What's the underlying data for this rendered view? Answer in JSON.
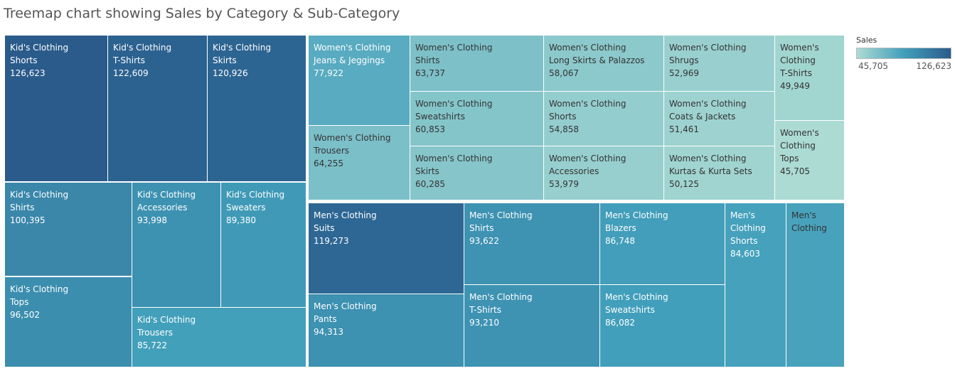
{
  "chart_data": {
    "type": "treemap",
    "title": "Treemap chart showing Sales by Category & Sub-Category",
    "color_legend": {
      "title": "Sales",
      "min": 45705,
      "max": 126623,
      "min_label": "45,705",
      "max_label": "126,623",
      "color_low": "#acdbd3",
      "color_high": "#2a5b8b"
    },
    "groups": [
      {
        "category": "Kid's Clothing",
        "items": [
          {
            "sub_category": "Shorts",
            "value": 126623,
            "value_label": "126,623"
          },
          {
            "sub_category": "T-Shirts",
            "value": 122609,
            "value_label": "122,609"
          },
          {
            "sub_category": "Skirts",
            "value": 120926,
            "value_label": "120,926"
          },
          {
            "sub_category": "Shirts",
            "value": 100395,
            "value_label": "100,395"
          },
          {
            "sub_category": "Accessories",
            "value": 93998,
            "value_label": "93,998"
          },
          {
            "sub_category": "Sweaters",
            "value": 89380,
            "value_label": "89,380"
          },
          {
            "sub_category": "Tops",
            "value": 96502,
            "value_label": "96,502"
          },
          {
            "sub_category": "Trousers",
            "value": 85722,
            "value_label": "85,722"
          }
        ]
      },
      {
        "category": "Women's Clothing",
        "items": [
          {
            "sub_category": "Jeans & Jeggings",
            "value": 77922,
            "value_label": "77,922"
          },
          {
            "sub_category": "Trousers",
            "value": 64255,
            "value_label": "64,255"
          },
          {
            "sub_category": "Shirts",
            "value": 63737,
            "value_label": "63,737"
          },
          {
            "sub_category": "Sweatshirts",
            "value": 60853,
            "value_label": "60,853"
          },
          {
            "sub_category": "Skirts",
            "value": 60285,
            "value_label": "60,285"
          },
          {
            "sub_category": "Long Skirts & Palazzos",
            "value": 58067,
            "value_label": "58,067"
          },
          {
            "sub_category": "Shorts",
            "value": 54858,
            "value_label": "54,858"
          },
          {
            "sub_category": "Accessories",
            "value": 53979,
            "value_label": "53,979"
          },
          {
            "sub_category": "Shrugs",
            "value": 52969,
            "value_label": "52,969"
          },
          {
            "sub_category": "Coats & Jackets",
            "value": 51461,
            "value_label": "51,461"
          },
          {
            "sub_category": "Kurtas & Kurta Sets",
            "value": 50125,
            "value_label": "50,125"
          },
          {
            "sub_category": "T-Shirts",
            "value": 49949,
            "value_label": "49,949"
          },
          {
            "sub_category": "Tops",
            "value": 45705,
            "value_label": "45,705"
          }
        ]
      },
      {
        "category": "Men's Clothing",
        "items": [
          {
            "sub_category": "Suits",
            "value": 119273,
            "value_label": "119,273"
          },
          {
            "sub_category": "Pants",
            "value": 94313,
            "value_label": "94,313"
          },
          {
            "sub_category": "Shirts",
            "value": 93622,
            "value_label": "93,622"
          },
          {
            "sub_category": "T-Shirts",
            "value": 93210,
            "value_label": "93,210"
          },
          {
            "sub_category": "Blazers",
            "value": 86748,
            "value_label": "86,748"
          },
          {
            "sub_category": "Sweatshirts",
            "value": 86082,
            "value_label": "86,082"
          },
          {
            "sub_category": "Shorts",
            "value": 84603,
            "value_label": "84,603"
          },
          {
            "sub_category": "",
            "value": null,
            "value_label": ""
          }
        ]
      }
    ]
  }
}
